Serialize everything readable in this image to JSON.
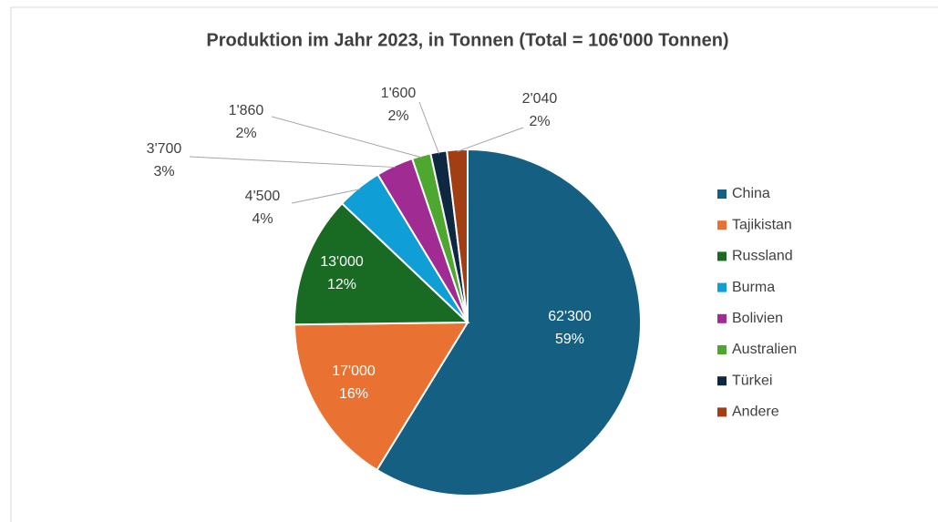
{
  "chart_data": {
    "type": "pie",
    "title": "Produktion im Jahr 2023,  in Tonnen (Total = 106'000 Tonnen)",
    "categories": [
      "China",
      "Tajikistan",
      "Russland",
      "Burma",
      "Bolivien",
      "Australien",
      "Türkei",
      "Andere"
    ],
    "values": [
      62300,
      17000,
      13000,
      4500,
      3700,
      1860,
      1600,
      2040
    ],
    "value_labels": [
      "62'300",
      "17'000",
      "13'000",
      "4'500",
      "3'700",
      "1'860",
      "1'600",
      "2'040"
    ],
    "percent_labels": [
      "59%",
      "16%",
      "12%",
      "4%",
      "3%",
      "2%",
      "2%",
      "2%"
    ],
    "colors": [
      "#156082",
      "#e97132",
      "#196b24",
      "#0f9ed5",
      "#a02b93",
      "#4ea72e",
      "#0e2841",
      "#a13e14"
    ],
    "legend": "right"
  }
}
